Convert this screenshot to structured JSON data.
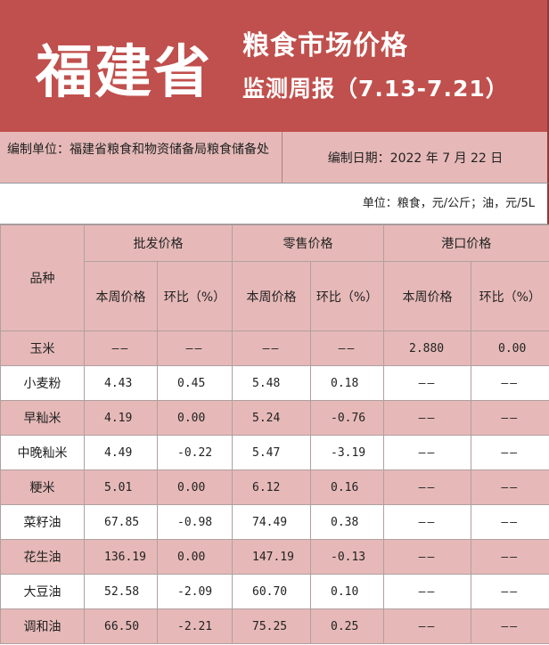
{
  "title": {
    "province": "福建省",
    "line1": "粮食市场价格",
    "line2": "监测周报（7.13-7.21）"
  },
  "info": {
    "compiler": "编制单位：福建省粮食和物资储备局粮食储备处",
    "date": "编制日期：2022 年 7 月 22 日"
  },
  "unit_note": "单位：粮食，元/公斤；油，元/5L",
  "table": {
    "variety_header": "品种",
    "groups": [
      "批发价格",
      "零售价格",
      "港口价格"
    ],
    "subheaders": [
      "本周价格",
      "环比（%）",
      "本周价格",
      "环比（%）",
      "本周价格",
      "环比（%）"
    ],
    "rows": [
      {
        "name": "玉米",
        "cells": [
          "——",
          "——",
          "——",
          "——",
          "2.880",
          "0.00"
        ]
      },
      {
        "name": "小麦粉",
        "cells": [
          "4.43",
          "0.45",
          "5.48",
          "0.18",
          "——",
          "——"
        ]
      },
      {
        "name": "早籼米",
        "cells": [
          "4.19",
          "0.00",
          "5.24",
          "-0.76",
          "——",
          "——"
        ]
      },
      {
        "name": "中晚籼米",
        "cells": [
          "4.49",
          "-0.22",
          "5.47",
          "-3.19",
          "——",
          "——"
        ]
      },
      {
        "name": "粳米",
        "cells": [
          "5.01",
          "0.00",
          "6.12",
          "0.16",
          "——",
          "——"
        ]
      },
      {
        "name": "菜籽油",
        "cells": [
          "67.85",
          "-0.98",
          "74.49",
          "0.38",
          "——",
          "——"
        ]
      },
      {
        "name": "花生油",
        "cells": [
          "136.19",
          "0.00",
          "147.19",
          "-0.13",
          "——",
          "——"
        ]
      },
      {
        "name": "大豆油",
        "cells": [
          "52.58",
          "-2.09",
          "60.70",
          "0.10",
          "——",
          "——"
        ]
      },
      {
        "name": "调和油",
        "cells": [
          "66.50",
          "-2.21",
          "75.25",
          "0.25",
          "——",
          "——"
        ]
      }
    ]
  },
  "colors": {
    "header_red": "#c0504d",
    "row_pink": "#e6b9b8"
  }
}
